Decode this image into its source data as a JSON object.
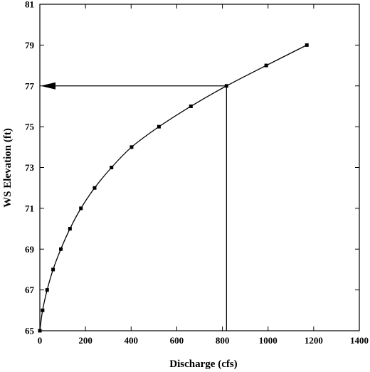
{
  "chart_data": {
    "type": "line",
    "title": "",
    "xlabel": "Discharge (cfs)",
    "ylabel": "WS Elevation (ft)",
    "xlim": [
      0,
      1400
    ],
    "ylim": [
      65,
      81
    ],
    "x_ticks": [
      0,
      200,
      400,
      600,
      800,
      1000,
      1200,
      1400
    ],
    "y_ticks": [
      65,
      67,
      69,
      71,
      73,
      75,
      77,
      79,
      81
    ],
    "grid": false,
    "legend": "none",
    "series": [
      {
        "x": [
          0,
          12,
          32,
          58,
          92,
          132,
          180,
          240,
          314,
          402,
          522,
          662,
          818,
          992,
          1170
        ],
        "y": [
          65,
          66,
          67,
          68,
          69,
          70,
          71,
          72,
          73,
          74,
          75,
          76,
          77,
          78,
          79
        ],
        "marker": "square",
        "color": "#000000"
      }
    ],
    "annotation": {
      "type": "lookup-arrow",
      "x": 818,
      "y": 77,
      "direction": "left",
      "color": "#000000"
    }
  }
}
